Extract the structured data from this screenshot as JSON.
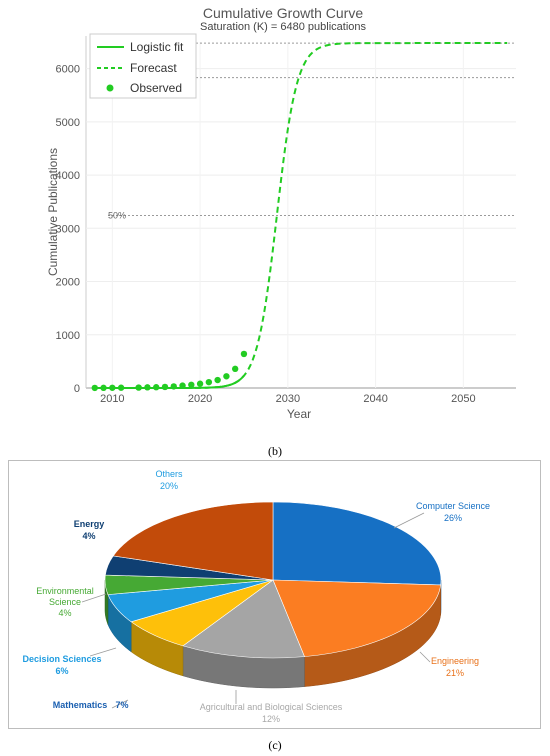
{
  "chart_data": [
    {
      "type": "line",
      "title": "Cumulative Growth Curve",
      "subtitle": "Saturation (K) = 6480 publications",
      "xlabel": "Year",
      "ylabel": "Cumulative Publications",
      "xlim": [
        2007,
        2056
      ],
      "ylim": [
        0,
        6500
      ],
      "xticks": [
        2010,
        2020,
        2030,
        2040,
        2050
      ],
      "yticks": [
        0,
        1000,
        2000,
        3000,
        4000,
        5000,
        6000
      ],
      "grid": true,
      "legend": "top-left",
      "model": {
        "K": 6480,
        "r": 0.88,
        "t0": 2028.75
      },
      "reference_lines": [
        {
          "label": "",
          "y": 6480
        },
        {
          "label": "",
          "y": 5830
        },
        {
          "label": "50%",
          "y": 3240
        }
      ],
      "series": [
        {
          "name": "Logistic fit",
          "style": "solid",
          "color": "#22cc22",
          "x_range": [
            2008,
            2025
          ]
        },
        {
          "name": "Forecast",
          "style": "dashed",
          "color": "#22cc22",
          "x_range": [
            2008,
            2055
          ]
        },
        {
          "name": "Observed",
          "style": "markers",
          "color": "#22cc22",
          "x": [
            2008,
            2009,
            2010,
            2011,
            2013,
            2014,
            2015,
            2016,
            2017,
            2018,
            2019,
            2020,
            2021,
            2022,
            2023,
            2024,
            2025
          ],
          "y": [
            2,
            3,
            4,
            5,
            8,
            12,
            15,
            20,
            30,
            45,
            60,
            80,
            110,
            150,
            220,
            360,
            640
          ]
        }
      ]
    },
    {
      "type": "pie",
      "title": "",
      "categories": [
        "Computer Science",
        "Engineering",
        "Agricultural and Biological Sciences",
        "Mathematics",
        "Decision Sciences",
        "Environmental Science",
        "Energy",
        "Others"
      ],
      "values": [
        26,
        21,
        12,
        7,
        6,
        4,
        4,
        20
      ],
      "labels": [
        "26%",
        "21%",
        "12%",
        "7%",
        "6%",
        "4%",
        "4%",
        "20%"
      ],
      "colors": [
        "#1670c4",
        "#fb7d22",
        "#a5a5a5",
        "#fec00a",
        "#1f9ce0",
        "#46a934",
        "#0f3f72",
        "#c24b0a"
      ]
    }
  ],
  "captions": {
    "b": "(b)",
    "c": "(c)"
  }
}
